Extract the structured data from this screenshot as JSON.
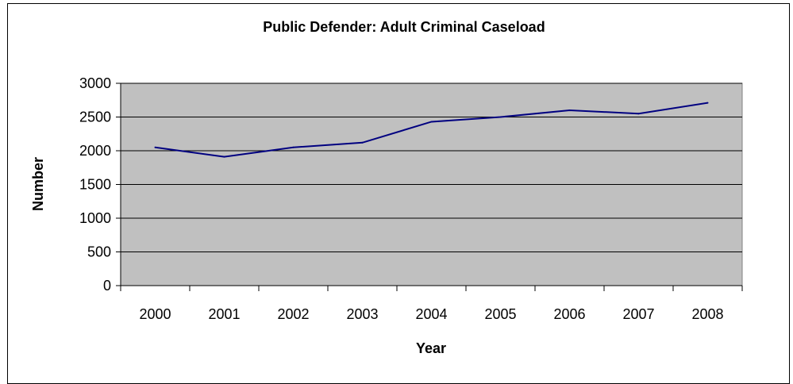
{
  "chart_data": {
    "type": "line",
    "title": "Public Defender: Adult Criminal Caseload",
    "xlabel": "Year",
    "ylabel": "Number",
    "categories": [
      "2000",
      "2001",
      "2002",
      "2003",
      "2004",
      "2005",
      "2006",
      "2007",
      "2008"
    ],
    "series": [
      {
        "values": [
          2050,
          1910,
          2050,
          2120,
          2430,
          2500,
          2600,
          2550,
          2710
        ]
      }
    ],
    "ylim": [
      0,
      3000
    ],
    "yticks": [
      "0",
      "500",
      "1000",
      "1500",
      "2000",
      "2500",
      "3000"
    ],
    "grid": true,
    "legend": "none",
    "colors": {
      "plot_bg": "#c0c0c0",
      "line": "#000080",
      "grid": "#000000"
    }
  }
}
